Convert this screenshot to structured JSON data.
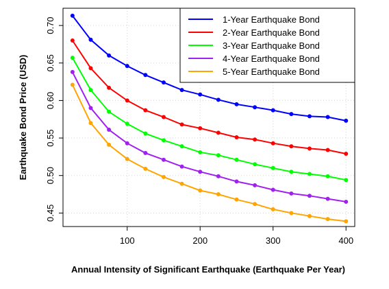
{
  "chart_data": {
    "type": "line",
    "title": "",
    "xlabel": "Annual Intensity of Significant Earthquake (Earthquake Per Year)",
    "ylabel": "Earthquake Bond Price (USD)",
    "xlim": [
      12,
      412
    ],
    "ylim": [
      0.432,
      0.723
    ],
    "xticks": [
      100,
      200,
      300,
      400
    ],
    "yticks": [
      0.45,
      0.5,
      0.55,
      0.6,
      0.65,
      0.7
    ],
    "ytick_labels": [
      "0.45",
      "0.50",
      "0.55",
      "0.60",
      "0.65",
      "0.70"
    ],
    "grid": true,
    "legend_position": "top-right",
    "x": [
      25,
      50,
      75,
      100,
      125,
      150,
      175,
      200,
      225,
      250,
      275,
      300,
      325,
      350,
      375,
      400
    ],
    "series": [
      {
        "name": "1-Year Earthquake Bond",
        "color": "#0000ff",
        "values": [
          0.713,
          0.681,
          0.66,
          0.646,
          0.634,
          0.624,
          0.614,
          0.608,
          0.601,
          0.595,
          0.591,
          0.587,
          0.582,
          0.579,
          0.578,
          0.573
        ]
      },
      {
        "name": "2-Year Earthquake Bond",
        "color": "#ff0000",
        "values": [
          0.68,
          0.643,
          0.617,
          0.6,
          0.587,
          0.578,
          0.568,
          0.563,
          0.557,
          0.551,
          0.548,
          0.543,
          0.539,
          0.536,
          0.534,
          0.529
        ]
      },
      {
        "name": "3-Year Earthquake Bond",
        "color": "#00ff00",
        "values": [
          0.657,
          0.614,
          0.585,
          0.569,
          0.556,
          0.547,
          0.539,
          0.531,
          0.527,
          0.521,
          0.515,
          0.51,
          0.505,
          0.502,
          0.499,
          0.494
        ]
      },
      {
        "name": "4-Year Earthquake Bond",
        "color": "#a020f0",
        "values": [
          0.638,
          0.59,
          0.561,
          0.543,
          0.53,
          0.521,
          0.512,
          0.505,
          0.499,
          0.492,
          0.487,
          0.481,
          0.476,
          0.473,
          0.469,
          0.465
        ]
      },
      {
        "name": "5-Year Earthquake Bond",
        "color": "#ffa500",
        "values": [
          0.621,
          0.57,
          0.541,
          0.522,
          0.509,
          0.498,
          0.489,
          0.48,
          0.475,
          0.468,
          0.462,
          0.455,
          0.45,
          0.446,
          0.442,
          0.439
        ]
      }
    ]
  }
}
